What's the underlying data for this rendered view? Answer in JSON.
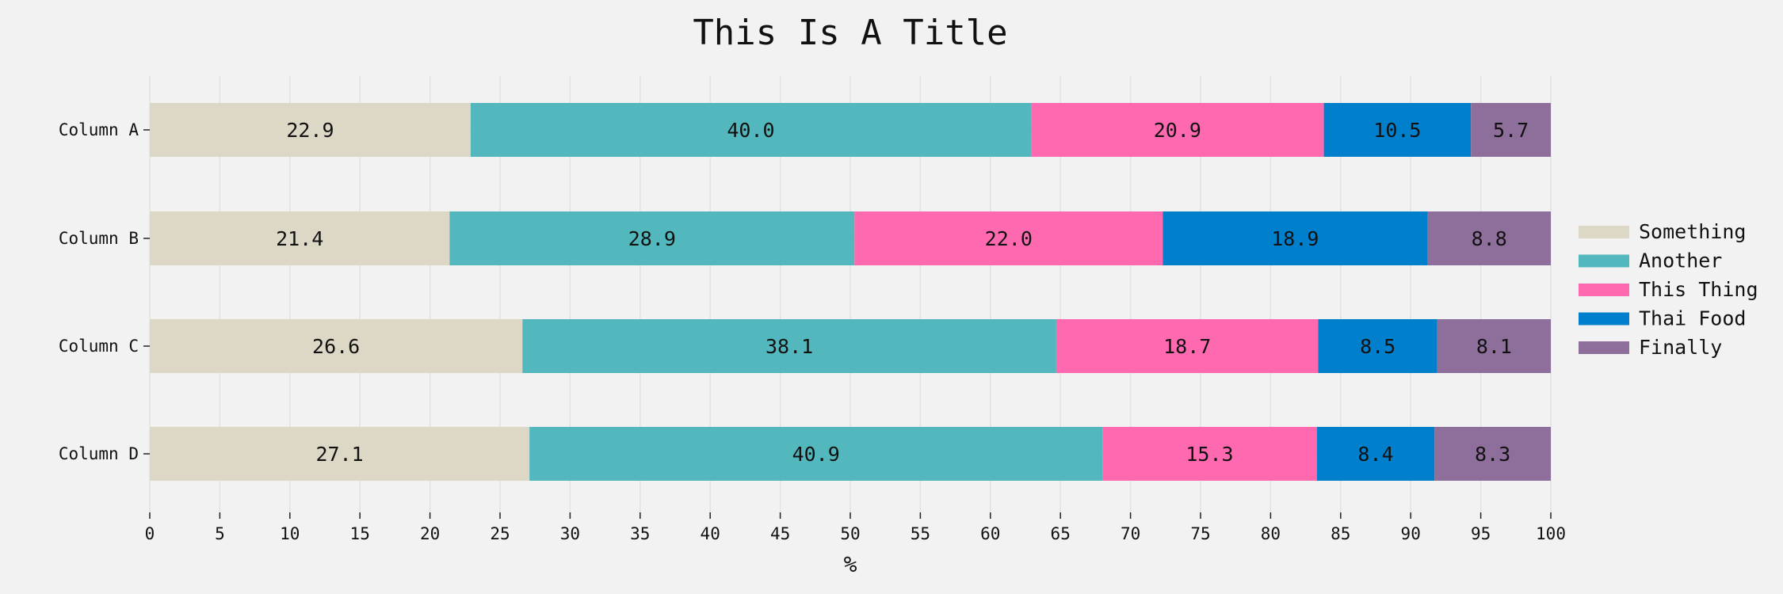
{
  "chart_data": {
    "type": "bar",
    "orientation": "horizontal",
    "stacked": true,
    "title": "This Is A Title",
    "xlabel": "%",
    "ylabel": "",
    "xlim": [
      0,
      100
    ],
    "x_ticks": [
      0,
      5,
      10,
      15,
      20,
      25,
      30,
      35,
      40,
      45,
      50,
      55,
      60,
      65,
      70,
      75,
      80,
      85,
      90,
      95,
      100
    ],
    "grid": true,
    "legend_position": "right",
    "categories": [
      "Column A",
      "Column B",
      "Column C",
      "Column D"
    ],
    "series": [
      {
        "name": "Something",
        "color": "#ddd8c6",
        "values": [
          22.9,
          21.4,
          26.6,
          27.1
        ]
      },
      {
        "name": "Another",
        "color": "#52b8bd",
        "values": [
          40.0,
          28.9,
          38.1,
          40.9
        ]
      },
      {
        "name": "This Thing",
        "color": "#ff69b0",
        "values": [
          20.9,
          22.0,
          18.7,
          15.3
        ]
      },
      {
        "name": "Thai Food",
        "color": "#0080cc",
        "values": [
          10.5,
          18.9,
          8.5,
          8.4
        ]
      },
      {
        "name": "Finally",
        "color": "#8e6e9a",
        "values": [
          5.7,
          8.8,
          8.1,
          8.3
        ]
      }
    ]
  }
}
